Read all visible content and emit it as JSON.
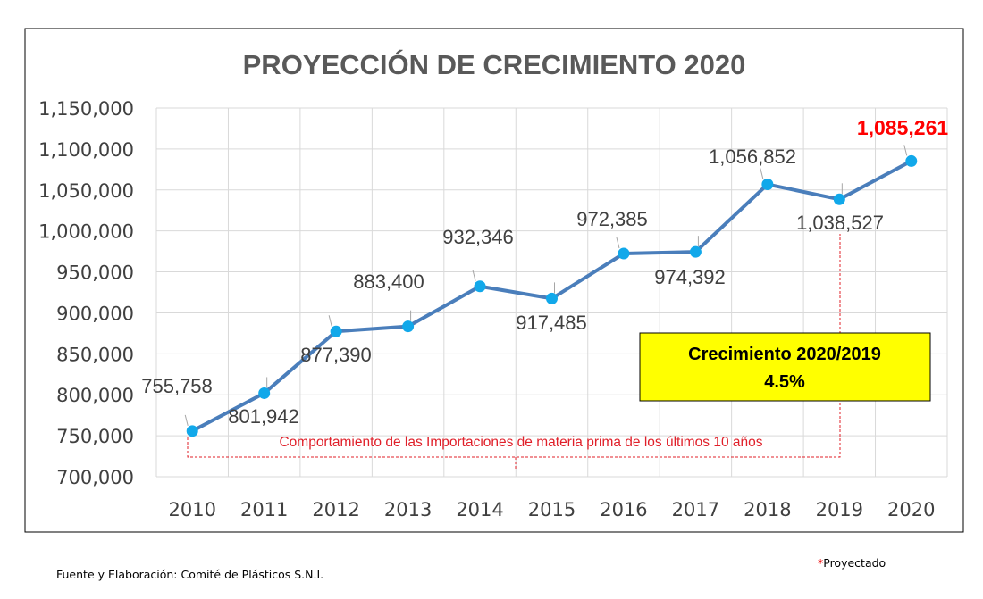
{
  "chart_data": {
    "type": "line",
    "title": "PROYECCIÓN DE CRECIMIENTO 2020",
    "categories": [
      "2010",
      "2011",
      "2012",
      "2013",
      "2014",
      "2015",
      "2016",
      "2017",
      "2018",
      "2019",
      "2020"
    ],
    "values": [
      755758,
      801942,
      877390,
      883400,
      932346,
      917485,
      972385,
      974392,
      1056852,
      1038527,
      1085261
    ],
    "data_labels": [
      "755,758",
      "801,942",
      "877,390",
      "883,400",
      "932,346",
      "917,485",
      "972,385",
      "974,392",
      "1,056,852",
      "1,038,527",
      "1,085,261"
    ],
    "ylim": [
      700000,
      1150000
    ],
    "yticks": [
      700000,
      750000,
      800000,
      850000,
      900000,
      950000,
      1000000,
      1050000,
      1100000,
      1150000
    ],
    "ytick_labels": [
      "700,000",
      "750,000",
      "800,000",
      "850,000",
      "900,000",
      "950,000",
      "1,000,000",
      "1,050,000",
      "1,100,000",
      "1,150,000"
    ],
    "grid": true,
    "xlabel": "",
    "ylabel": "",
    "series_color": "#4a7ebb",
    "marker_color": "#11a8ea",
    "highlight_color": "#ff0000",
    "annotation_range": "Comportamiento de las Importaciones de materia prima de los últimos 10 años",
    "callout": {
      "line1": "Crecimiento 2020/2019",
      "line2": "4.5%",
      "bg": "#ffff00"
    }
  },
  "footer": {
    "source": "Fuente y Elaboración: Comité de Plásticos S.N.I.",
    "projected_mark": "*",
    "projected": "Proyectado"
  }
}
